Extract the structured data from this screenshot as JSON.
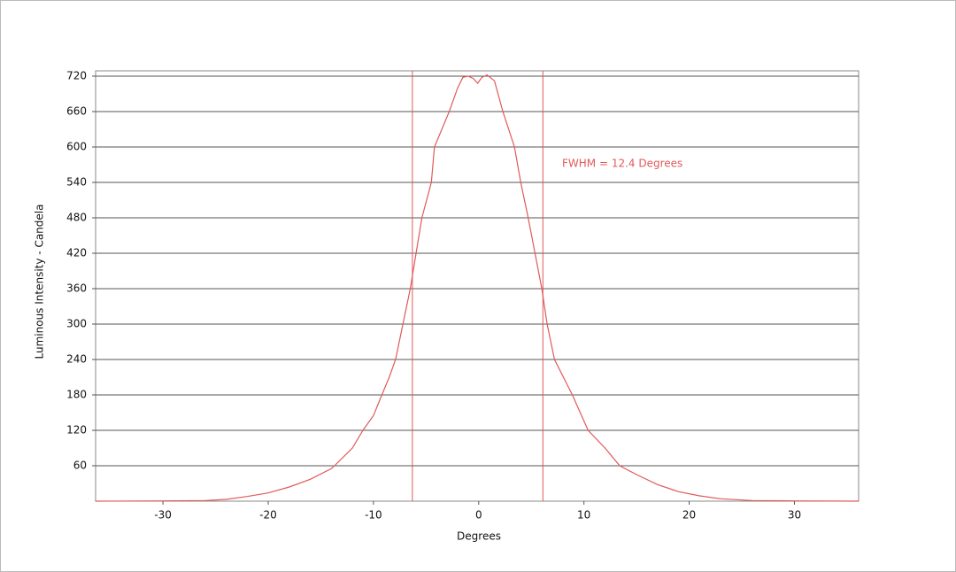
{
  "chart_data": {
    "type": "line",
    "x_label": "Degrees",
    "y_label": "Luminous Intensity - Candela",
    "annotation": "FWHM = 12.4 Degrees",
    "x": [
      -36.4,
      -30,
      -26,
      -24,
      -22,
      -20,
      -18,
      -16,
      -14,
      -13.7,
      -12,
      -11,
      -10,
      -9.2,
      -8.5,
      -7.9,
      -7.2,
      -6.5,
      -5.4,
      -4.5,
      -4.2,
      -2.8,
      -2,
      -1.5,
      -1,
      -0.5,
      -0.1,
      0.3,
      0.8,
      1.5,
      2.3,
      3.4,
      4.0,
      4.7,
      6.0,
      6.5,
      7.2,
      8.9,
      10.4,
      12,
      13.4,
      15,
      17,
      19,
      21,
      23,
      26,
      30,
      36.1
    ],
    "values": [
      0,
      0.5,
      1,
      3,
      8,
      14,
      24,
      37,
      55,
      60,
      90,
      120,
      145,
      180,
      210,
      240,
      300,
      360,
      480,
      540,
      600,
      660,
      700,
      718,
      720,
      716,
      708,
      718,
      722,
      712,
      660,
      600,
      540,
      480,
      360,
      300,
      240,
      180,
      120,
      90,
      60,
      45,
      28,
      16,
      9,
      4,
      1,
      0.5,
      0
    ],
    "color": "#e05a5a",
    "fwhm_lines": [
      -6.3,
      6.1
    ],
    "xlim": [
      -36.4,
      36.1
    ],
    "ylim": [
      0,
      729
    ],
    "xticks": [
      -30,
      -20,
      -10,
      0,
      10,
      20,
      30
    ],
    "yticks": [
      60,
      120,
      180,
      240,
      300,
      360,
      420,
      480,
      540,
      600,
      660,
      720
    ],
    "grid": true
  }
}
